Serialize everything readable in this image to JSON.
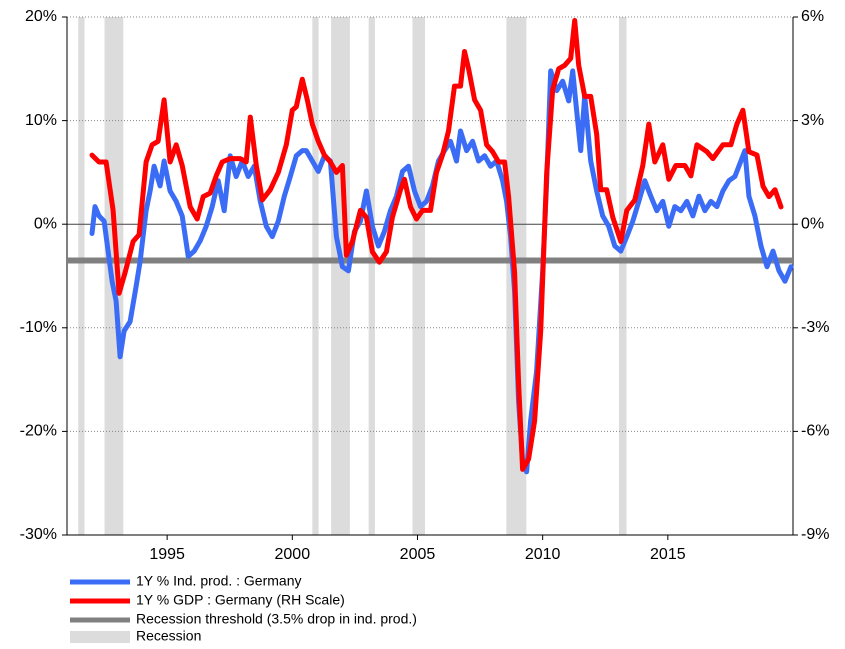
{
  "chart_data": {
    "type": "line",
    "xlim": [
      1991,
      2020
    ],
    "xticks": [
      1995,
      2000,
      2005,
      2010,
      2015
    ],
    "ylim": [
      -30,
      20
    ],
    "yticks": [
      {
        "value": -30,
        "label": "-30%"
      },
      {
        "value": -20,
        "label": "-20%"
      },
      {
        "value": -10,
        "label": "-10%"
      },
      {
        "value": 0,
        "label": "0%"
      },
      {
        "value": 10,
        "label": "10%"
      },
      {
        "value": 20,
        "label": "20%"
      }
    ],
    "y2lim": [
      -9,
      6
    ],
    "y2ticks": [
      {
        "value": -9,
        "label": "-9%"
      },
      {
        "value": -6,
        "label": "-6%"
      },
      {
        "value": -3,
        "label": "-3%"
      },
      {
        "value": 0,
        "label": "0%"
      },
      {
        "value": 3,
        "label": "3%"
      },
      {
        "value": 6,
        "label": "6%"
      }
    ],
    "grid": true,
    "legend": "bottom-left",
    "series": [
      {
        "name": "1Y % Ind. prod. : Germany",
        "color": "#3b6cf5",
        "x": [
          1992.0,
          1992.12,
          1992.28,
          1992.48,
          1992.64,
          1992.8,
          1992.96,
          1993.12,
          1993.28,
          1993.52,
          1993.76,
          1993.92,
          1994.16,
          1994.32,
          1994.48,
          1994.72,
          1994.88,
          1995.12,
          1995.36,
          1995.6,
          1995.84,
          1996.08,
          1996.32,
          1996.56,
          1996.8,
          1997.04,
          1997.28,
          1997.52,
          1997.76,
          1998.0,
          1998.24,
          1998.48,
          1998.72,
          1998.96,
          1999.2,
          1999.44,
          1999.68,
          1999.92,
          2000.16,
          2000.4,
          2000.56,
          2000.8,
          2001.04,
          2001.28,
          2001.52,
          2001.76,
          2002.0,
          2002.24,
          2002.48,
          2002.72,
          2002.96,
          2003.2,
          2003.44,
          2003.68,
          2003.92,
          2004.16,
          2004.4,
          2004.64,
          2004.88,
          2005.12,
          2005.36,
          2005.6,
          2005.84,
          2006.08,
          2006.32,
          2006.56,
          2006.72,
          2006.96,
          2007.2,
          2007.44,
          2007.68,
          2007.92,
          2008.16,
          2008.4,
          2008.56,
          2008.72,
          2008.88,
          2009.04,
          2009.2,
          2009.36,
          2009.52,
          2009.76,
          2010.0,
          2010.16,
          2010.32,
          2010.56,
          2010.8,
          2011.04,
          2011.2,
          2011.36,
          2011.52,
          2011.68,
          2011.92,
          2012.16,
          2012.4,
          2012.64,
          2012.88,
          2013.12,
          2013.36,
          2013.6,
          2013.84,
          2014.08,
          2014.32,
          2014.56,
          2014.8,
          2015.04,
          2015.28,
          2015.52,
          2015.76,
          2016.0,
          2016.24,
          2016.48,
          2016.72,
          2016.96,
          2017.2,
          2017.44,
          2017.68,
          2017.92,
          2018.08,
          2018.24,
          2018.48,
          2018.72,
          2018.96,
          2019.2,
          2019.44,
          2019.68,
          2019.92
        ],
        "values": [
          -0.9,
          1.7,
          0.8,
          0.3,
          -2.6,
          -5.5,
          -7.4,
          -12.8,
          -10.3,
          -9.4,
          -6.0,
          -3.6,
          1.3,
          3.2,
          5.6,
          3.7,
          6.1,
          3.2,
          2.2,
          0.8,
          -3.1,
          -2.6,
          -1.6,
          -0.2,
          1.7,
          4.2,
          1.3,
          6.6,
          4.6,
          6.1,
          4.6,
          5.6,
          2.2,
          -0.2,
          -1.2,
          0.3,
          2.7,
          4.6,
          6.6,
          7.1,
          7.1,
          6.1,
          5.1,
          6.6,
          6.1,
          -1.2,
          -4.1,
          -4.5,
          -0.7,
          0.3,
          3.2,
          -0.2,
          -2.1,
          -0.7,
          1.3,
          2.7,
          5.1,
          5.6,
          3.2,
          1.7,
          2.2,
          3.7,
          6.1,
          7.1,
          8.0,
          6.1,
          9.0,
          7.1,
          8.0,
          6.1,
          6.6,
          5.6,
          6.1,
          4.2,
          2.2,
          -1.2,
          -6.5,
          -17.1,
          -22.9,
          -23.9,
          -19.0,
          -14.2,
          -4.5,
          4.2,
          14.8,
          12.9,
          13.8,
          11.9,
          14.8,
          10.9,
          7.1,
          12.4,
          6.1,
          3.2,
          0.8,
          -0.2,
          -2.1,
          -2.6,
          -1.2,
          0.3,
          2.2,
          4.2,
          2.7,
          1.3,
          2.2,
          -0.2,
          1.7,
          1.3,
          2.2,
          0.8,
          2.7,
          1.3,
          2.2,
          1.7,
          3.2,
          4.2,
          4.6,
          6.1,
          7.1,
          2.7,
          0.8,
          -2.1,
          -4.1,
          -2.6,
          -4.5,
          -5.5,
          -4.1
        ]
      },
      {
        "name": "1Y % GDP : Germany (RH Scale)",
        "color": "#ff0000",
        "axis": "y2",
        "x": [
          1992.0,
          1992.28,
          1992.56,
          1992.84,
          1993.08,
          1993.32,
          1993.64,
          1993.88,
          1994.16,
          1994.4,
          1994.64,
          1994.88,
          1995.12,
          1995.36,
          1995.6,
          1995.92,
          1996.2,
          1996.44,
          1996.72,
          1996.96,
          1997.2,
          1997.52,
          1997.92,
          1998.16,
          1998.32,
          1998.56,
          1998.8,
          1999.12,
          1999.44,
          1999.76,
          2000.0,
          2000.16,
          2000.4,
          2000.6,
          2000.8,
          2001.04,
          2001.28,
          2001.52,
          2001.76,
          2002.0,
          2002.16,
          2002.4,
          2002.72,
          2002.96,
          2003.2,
          2003.48,
          2003.76,
          2004.0,
          2004.32,
          2004.48,
          2004.72,
          2004.96,
          2005.2,
          2005.52,
          2005.76,
          2006.0,
          2006.24,
          2006.48,
          2006.72,
          2006.88,
          2007.04,
          2007.28,
          2007.52,
          2007.76,
          2008.0,
          2008.24,
          2008.48,
          2008.64,
          2008.88,
          2009.04,
          2009.2,
          2009.44,
          2009.68,
          2009.92,
          2010.16,
          2010.4,
          2010.64,
          2010.88,
          2011.12,
          2011.28,
          2011.44,
          2011.68,
          2011.92,
          2012.16,
          2012.32,
          2012.56,
          2012.8,
          2013.12,
          2013.36,
          2013.68,
          2014.0,
          2014.24,
          2014.48,
          2014.8,
          2015.04,
          2015.32,
          2015.68,
          2015.92,
          2016.16,
          2016.56,
          2016.8,
          2017.2,
          2017.52,
          2017.76,
          2018.0,
          2018.24,
          2018.56,
          2018.8,
          2019.04,
          2019.28,
          2019.52
        ],
        "values": [
          2.0,
          1.8,
          1.8,
          0.4,
          -2.0,
          -1.4,
          -0.5,
          -0.3,
          1.8,
          2.3,
          2.4,
          3.6,
          1.8,
          2.3,
          1.7,
          0.5,
          0.15,
          0.8,
          0.9,
          1.4,
          1.8,
          1.9,
          1.9,
          1.8,
          3.1,
          1.7,
          0.7,
          1.0,
          1.5,
          2.3,
          3.3,
          3.4,
          4.2,
          3.6,
          2.9,
          2.4,
          2.0,
          1.8,
          1.5,
          1.7,
          -0.9,
          -0.5,
          0.4,
          0.2,
          -0.8,
          -1.1,
          -0.8,
          0.2,
          1.0,
          1.3,
          0.5,
          0.15,
          0.4,
          0.4,
          1.5,
          2.0,
          2.7,
          4.0,
          4.0,
          5.0,
          4.5,
          3.6,
          3.3,
          2.3,
          2.1,
          1.8,
          1.8,
          0.8,
          -1.4,
          -4.6,
          -7.1,
          -6.8,
          -5.7,
          -3.1,
          1.5,
          3.9,
          4.5,
          4.6,
          4.8,
          5.9,
          4.6,
          3.7,
          3.7,
          2.6,
          1.0,
          1.0,
          0.2,
          -0.5,
          0.4,
          0.7,
          1.7,
          2.9,
          1.8,
          2.3,
          1.3,
          1.7,
          1.7,
          1.4,
          2.3,
          2.1,
          1.9,
          2.3,
          2.3,
          2.9,
          3.3,
          2.1,
          2.0,
          1.1,
          0.8,
          1.0,
          0.5
        ]
      }
    ],
    "threshold": {
      "name": "Recession threshold (3.5% drop in ind. prod.)",
      "color": "#808080",
      "value": -3.5
    },
    "recessions": {
      "name": "Recession",
      "color": "#dcdcdc",
      "periods": [
        [
          1991.45,
          1991.7
        ],
        [
          1992.5,
          1993.25
        ],
        [
          2000.8,
          2001.05
        ],
        [
          2001.55,
          2002.3
        ],
        [
          2003.05,
          2003.3
        ],
        [
          2004.8,
          2005.3
        ],
        [
          2008.55,
          2009.35
        ],
        [
          2013.05,
          2013.35
        ]
      ]
    }
  }
}
